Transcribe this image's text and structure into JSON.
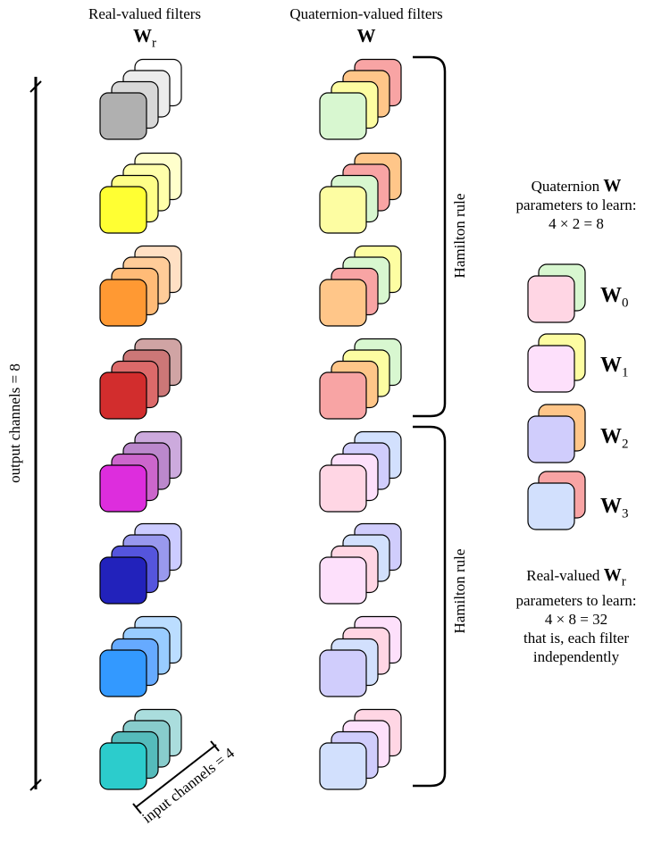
{
  "headers": {
    "real_title": "Real-valued filters",
    "real_symbol": "W",
    "real_symbol_sub": "r",
    "quat_title": "Quaternion-valued filters",
    "quat_symbol": "W"
  },
  "axes": {
    "output_channels": "output channels = 8",
    "input_channels": "input channels = 4"
  },
  "braces": {
    "upper": "Hamilton rule",
    "lower": "Hamilton rule"
  },
  "quaternion_info": {
    "line1_prefix": "Quaternion ",
    "line1_symbol": "W",
    "line2": "parameters to learn:",
    "line3": "4 × 2 = 8"
  },
  "legend": [
    {
      "symbol": "W",
      "sub": "0",
      "front": "#ffd6e4",
      "back": "#d8f7d0"
    },
    {
      "symbol": "W",
      "sub": "1",
      "front": "#fde0fb",
      "back": "#fdfda2"
    },
    {
      "symbol": "W",
      "sub": "2",
      "front": "#d0cdfc",
      "back": "#ffc689"
    },
    {
      "symbol": "W",
      "sub": "3",
      "front": "#d2e0fd",
      "back": "#f8a4a4"
    }
  ],
  "real_info": {
    "line1_prefix": "Real-valued ",
    "line1_symbol": "W",
    "line1_sub": "r",
    "line2": "parameters to learn:",
    "line3": "4 × 8 = 32",
    "line4": "that is, each filter",
    "line5": "independently"
  },
  "real_filters": [
    [
      "#b0b0b0",
      "#d8d8d8",
      "#ececec",
      "#ffffff"
    ],
    [
      "#ffff33",
      "#ffff88",
      "#ffffaa",
      "#ffffcc"
    ],
    [
      "#ff9933",
      "#ffbb77",
      "#ffcc99",
      "#ffe0c4"
    ],
    [
      "#d22d2d",
      "#dc6a6a",
      "#cc7777",
      "#d0a4a4"
    ],
    [
      "#dd2ddd",
      "#cc66cc",
      "#bb88cc",
      "#ccaadd"
    ],
    [
      "#2222bb",
      "#5555dd",
      "#9999ee",
      "#ccccff"
    ],
    [
      "#3399ff",
      "#66aaff",
      "#99ccff",
      "#bbddff"
    ],
    [
      "#2ccccc",
      "#55bbbb",
      "#88cccc",
      "#aadddd"
    ]
  ],
  "quat_filters": [
    [
      "#d8f7d0",
      "#fdfda2",
      "#ffc689",
      "#f8a4a4"
    ],
    [
      "#fdfda2",
      "#d8f7d0",
      "#f8a4a4",
      "#ffc689"
    ],
    [
      "#ffc689",
      "#f8a4a4",
      "#d8f7d0",
      "#fdfda2"
    ],
    [
      "#f8a4a4",
      "#ffc689",
      "#fdfda2",
      "#d8f7d0"
    ],
    [
      "#ffd6e4",
      "#fde0fb",
      "#d0cdfc",
      "#d2e0fd"
    ],
    [
      "#fde0fb",
      "#ffd6e4",
      "#d2e0fd",
      "#d0cdfc"
    ],
    [
      "#d0cdfc",
      "#d2e0fd",
      "#ffd6e4",
      "#fde0fb"
    ],
    [
      "#d2e0fd",
      "#d0cdfc",
      "#fde0fb",
      "#ffd6e4"
    ]
  ]
}
